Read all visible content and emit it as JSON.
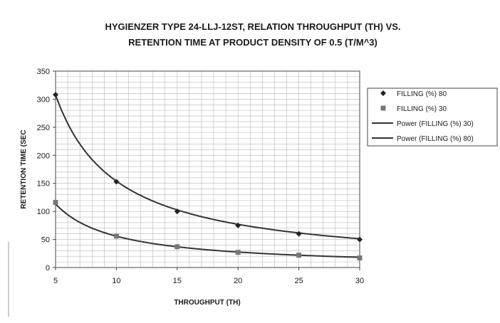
{
  "chart_data": {
    "type": "scatter",
    "title_line1": "HYGIENZER TYPE 24-LLJ-12ST, RELATION THROUGHPUT (TH) VS.",
    "title_line2": "RETENTION TIME AT PRODUCT DENSITY OF 0.5 (T/M^3)",
    "xlabel": "THROUGHPUT (TH)",
    "ylabel": "RETENTION TIME (SEC",
    "xlim": [
      5,
      30
    ],
    "ylim": [
      0,
      350
    ],
    "x_ticks": [
      5,
      10,
      15,
      20,
      25,
      30
    ],
    "y_ticks": [
      0,
      50,
      100,
      150,
      200,
      250,
      300,
      350
    ],
    "grid": true,
    "legend_position": "right",
    "series": [
      {
        "name": "FILLING (%) 80",
        "kind": "points",
        "marker": "diamond",
        "color": "#222222",
        "points": [
          [
            5,
            308
          ],
          [
            10,
            153
          ],
          [
            15,
            100
          ],
          [
            20,
            75
          ],
          [
            25,
            60
          ],
          [
            30,
            50
          ]
        ]
      },
      {
        "name": "FILLING (%) 30",
        "kind": "points",
        "marker": "square",
        "color": "#777777",
        "points": [
          [
            5,
            116
          ],
          [
            10,
            56
          ],
          [
            15,
            37
          ],
          [
            20,
            27
          ],
          [
            25,
            22
          ],
          [
            30,
            17
          ]
        ]
      },
      {
        "name": "Power (FILLING (%) 30)",
        "kind": "power-fit",
        "coef": 585,
        "exp": -1.02,
        "color": "#333333"
      },
      {
        "name": "Power (FILLING (%) 80)",
        "kind": "power-fit",
        "coef": 1540,
        "exp": -1.0,
        "color": "#333333"
      }
    ]
  }
}
